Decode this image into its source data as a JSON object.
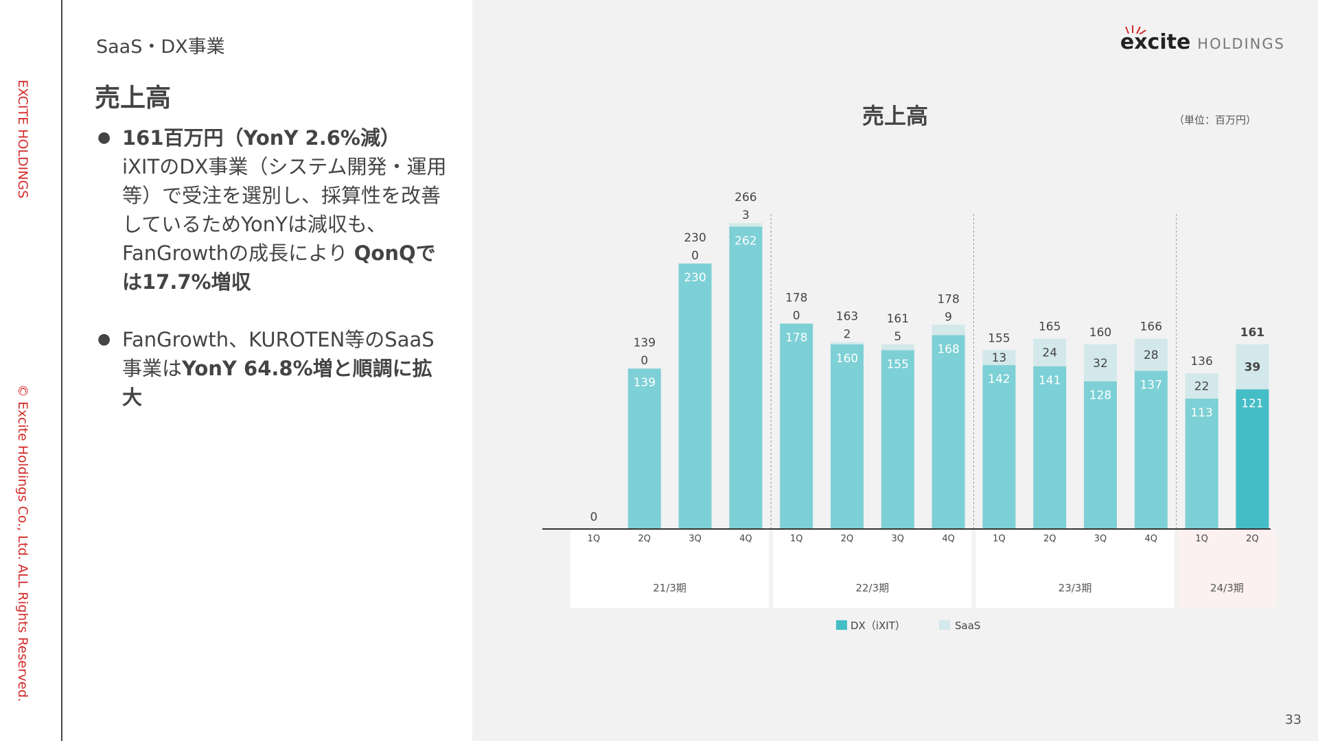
{
  "sidebar": {
    "brand": "EXCITE HOLDINGS",
    "copyright": "© Excite Holdings Co., Ltd. ALL Rights Reserved."
  },
  "header": {
    "section": "SaaS・DX事業",
    "heading": "売上高"
  },
  "bullets": [
    {
      "lead": "161百万円（YonY 2.6%減）",
      "text": "iXITのDX事業（システム開発・運用等）で受注を選別し、採算性を改善しているためYonYは減収も、FanGrowthの成長により",
      "tail_bold": "QonQでは17.7%増収"
    },
    {
      "text": "FanGrowth、KUROTEN等のSaaS事業は",
      "tail_bold": "YonY 64.8%増と順調に拡大"
    }
  ],
  "logo": {
    "mark": "excite",
    "sub": "HOLDINGS"
  },
  "page_number": "33",
  "chart_data": {
    "type": "bar",
    "stacked": true,
    "title": "売上高",
    "unit_label": "（単位：百万円）",
    "categories": [
      "1Q",
      "2Q",
      "3Q",
      "4Q",
      "1Q",
      "2Q",
      "3Q",
      "4Q",
      "1Q",
      "2Q",
      "3Q",
      "4Q",
      "1Q",
      "2Q"
    ],
    "periods": [
      {
        "label": "21/3期",
        "quarters": 4
      },
      {
        "label": "22/3期",
        "quarters": 4
      },
      {
        "label": "23/3期",
        "quarters": 4
      },
      {
        "label": "24/3期",
        "quarters": 2,
        "highlight": true
      }
    ],
    "series": [
      {
        "name": "DX（iXIT）",
        "values": [
          0,
          139,
          230,
          262,
          178,
          160,
          155,
          168,
          142,
          141,
          128,
          137,
          113,
          121
        ],
        "color": "#7dd0d5",
        "latest_color": "#45bdc6"
      },
      {
        "name": "SaaS",
        "values": [
          0,
          0,
          0,
          3,
          0,
          2,
          5,
          9,
          13,
          24,
          32,
          28,
          22,
          39
        ],
        "color": "#d3e8ea"
      }
    ],
    "totals": [
      0,
      139,
      230,
      266,
      178,
      163,
      161,
      178,
      155,
      165,
      160,
      166,
      136,
      161
    ],
    "ylim": [
      0,
      280
    ],
    "legend_position": "bottom",
    "grid": false
  }
}
